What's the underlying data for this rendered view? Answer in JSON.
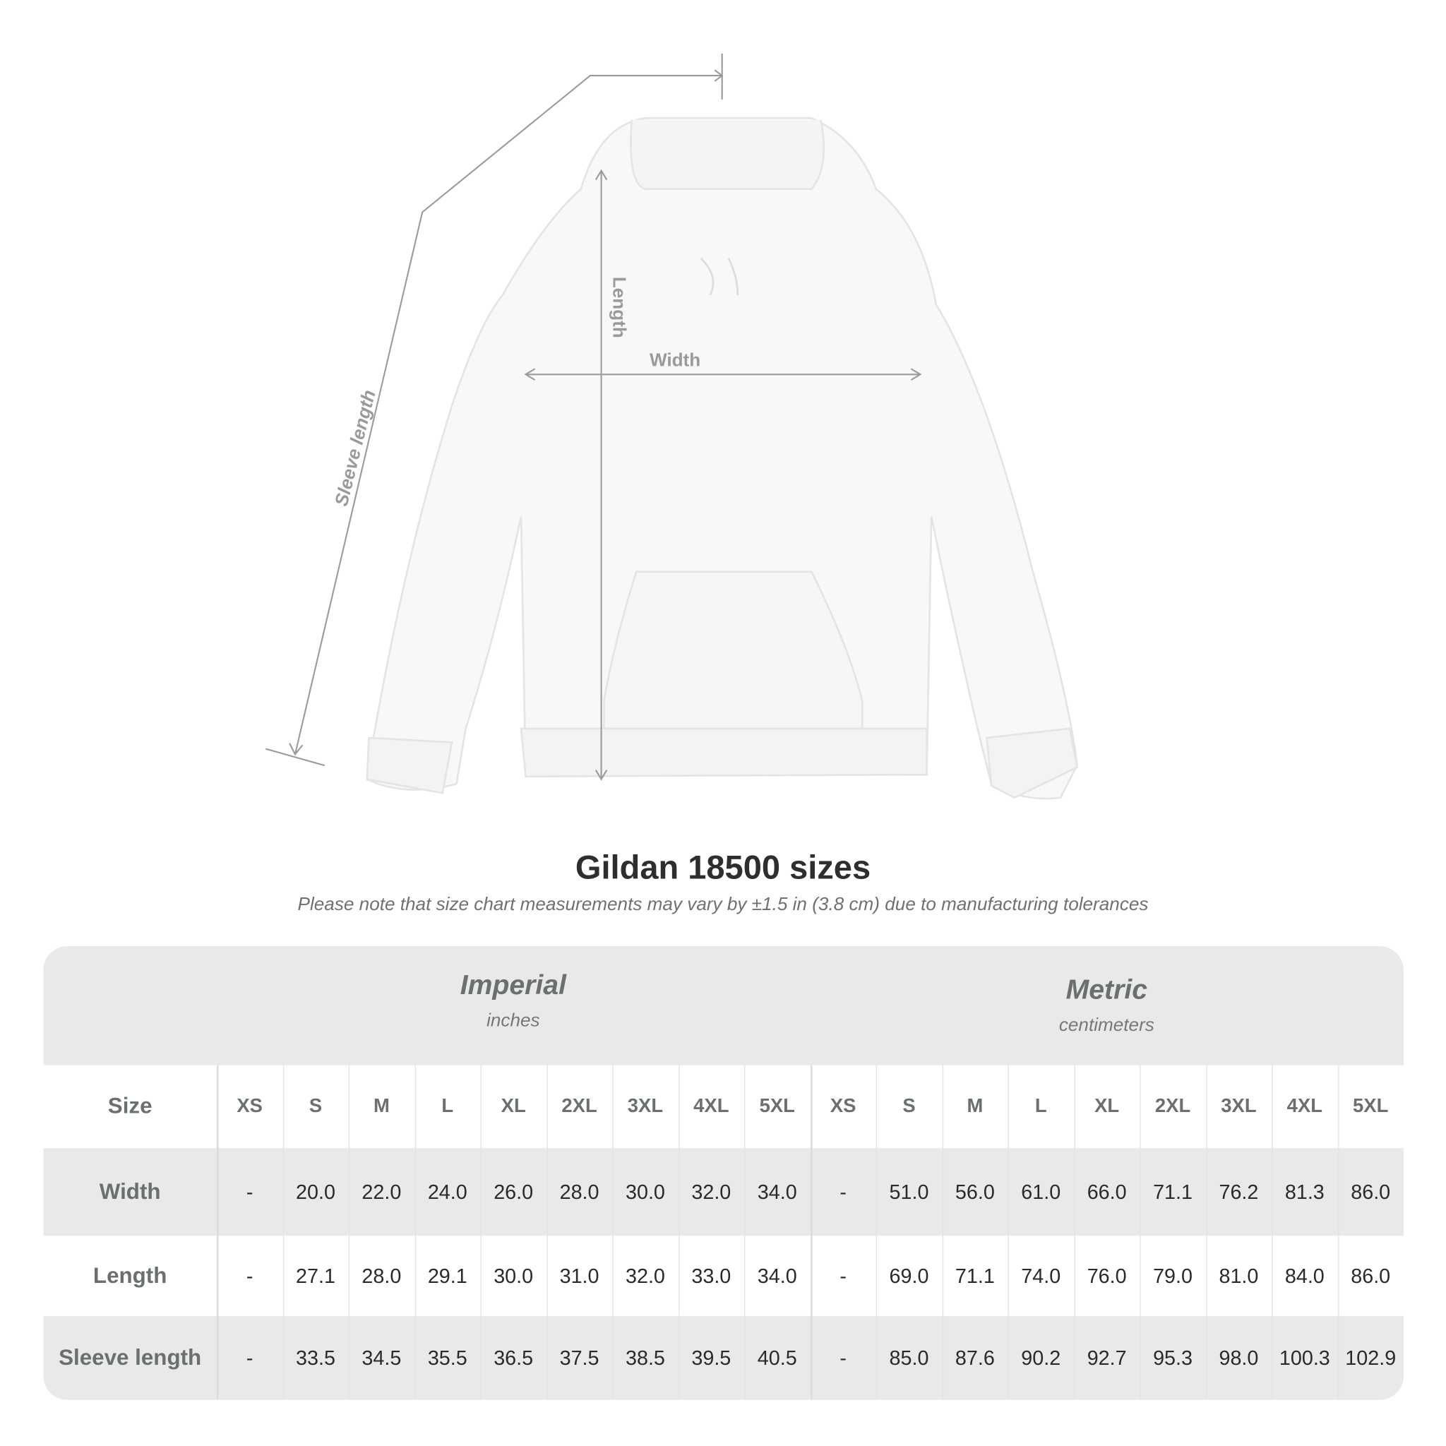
{
  "diagram": {
    "labels": {
      "sleeve_length": "Sleeve length",
      "length": "Length",
      "width": "Width"
    }
  },
  "title": "Gildan 18500 sizes",
  "note": "Please note that size chart measurements may vary by ±1.5 in (3.8 cm) due to manufacturing tolerances",
  "table": {
    "imperial": {
      "title": "Imperial",
      "unit": "inches"
    },
    "metric": {
      "title": "Metric",
      "unit": "centimeters"
    },
    "size_label": "Size",
    "sizes": [
      "XS",
      "S",
      "M",
      "L",
      "XL",
      "2XL",
      "3XL",
      "4XL",
      "5XL"
    ],
    "rows": [
      {
        "label": "Width",
        "imperial": [
          "-",
          "20.0",
          "22.0",
          "24.0",
          "26.0",
          "28.0",
          "30.0",
          "32.0",
          "34.0"
        ],
        "metric": [
          "-",
          "51.0",
          "56.0",
          "61.0",
          "66.0",
          "71.1",
          "76.2",
          "81.3",
          "86.0"
        ]
      },
      {
        "label": "Length",
        "imperial": [
          "-",
          "27.1",
          "28.0",
          "29.1",
          "30.0",
          "31.0",
          "32.0",
          "33.0",
          "34.0"
        ],
        "metric": [
          "-",
          "69.0",
          "71.1",
          "74.0",
          "76.0",
          "79.0",
          "81.0",
          "84.0",
          "86.0"
        ]
      },
      {
        "label": "Sleeve length",
        "imperial": [
          "-",
          "33.5",
          "34.5",
          "35.5",
          "36.5",
          "37.5",
          "38.5",
          "39.5",
          "40.5"
        ],
        "metric": [
          "-",
          "85.0",
          "87.6",
          "90.2",
          "92.7",
          "95.3",
          "98.0",
          "100.3",
          "102.9"
        ]
      }
    ]
  },
  "colors": {
    "band": "#e9e9e9",
    "label_text": "#6a6f70",
    "measure_line": "#9a9a9a"
  }
}
